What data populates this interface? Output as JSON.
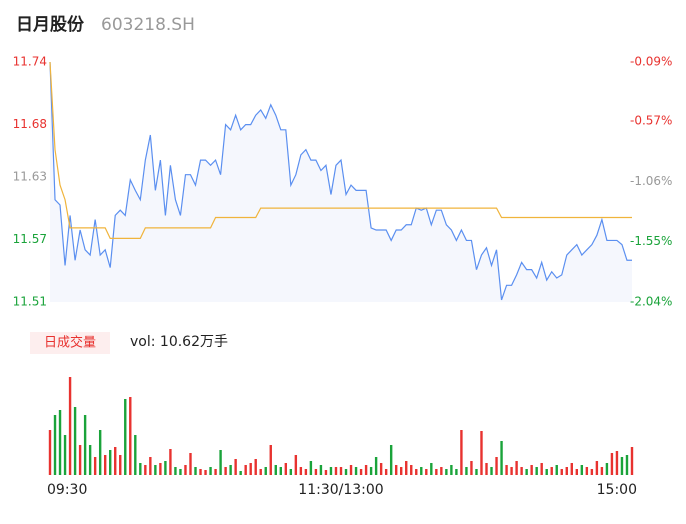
{
  "header": {
    "title": "日月股份",
    "code": "603218.SH"
  },
  "colors": {
    "up": "#e8322f",
    "down": "#1aa33a",
    "flat": "#999999"
  },
  "chart_data": [
    {
      "type": "line",
      "xlim": [
        0,
        116
      ],
      "xticks": [
        {
          "value": 0,
          "label": "09:30"
        },
        {
          "value": 58,
          "label": "11:30/13:00"
        },
        {
          "value": 116,
          "label": "15:00"
        }
      ],
      "ylim": [
        11.51,
        11.74
      ],
      "yticks": [
        11.74,
        11.68,
        11.63,
        11.57,
        11.51
      ],
      "y2lim": [
        -2.04,
        -0.09
      ],
      "y2ticks": [
        {
          "value": -0.09,
          "label": "-0.09%"
        },
        {
          "value": -0.57,
          "label": "-0.57%"
        },
        {
          "value": -1.06,
          "label": "-1.06%"
        },
        {
          "value": -1.55,
          "label": "-1.55%"
        },
        {
          "value": -2.04,
          "label": "-2.04%"
        }
      ],
      "series": [
        {
          "color": "#5b8ff0",
          "fill": "#f5f7fd",
          "values": [
            11.74,
            11.608,
            11.603,
            11.545,
            11.593,
            11.55,
            11.579,
            11.56,
            11.555,
            11.589,
            11.555,
            11.56,
            11.543,
            11.593,
            11.598,
            11.593,
            11.627,
            11.617,
            11.608,
            11.646,
            11.67,
            11.617,
            11.646,
            11.593,
            11.641,
            11.608,
            11.593,
            11.632,
            11.632,
            11.622,
            11.646,
            11.646,
            11.641,
            11.646,
            11.632,
            11.68,
            11.675,
            11.689,
            11.675,
            11.68,
            11.68,
            11.689,
            11.694,
            11.686,
            11.699,
            11.689,
            11.675,
            11.675,
            11.622,
            11.632,
            11.651,
            11.656,
            11.646,
            11.646,
            11.636,
            11.641,
            11.613,
            11.641,
            11.646,
            11.613,
            11.622,
            11.617,
            11.617,
            11.617,
            11.581,
            11.579,
            11.579,
            11.579,
            11.569,
            11.579,
            11.579,
            11.584,
            11.584,
            11.6,
            11.598,
            11.6,
            11.584,
            11.598,
            11.598,
            11.584,
            11.579,
            11.569,
            11.579,
            11.569,
            11.569,
            11.541,
            11.555,
            11.562,
            11.545,
            11.56,
            11.512,
            11.526,
            11.526,
            11.536,
            11.548,
            11.541,
            11.541,
            11.533,
            11.548,
            11.531,
            11.539,
            11.533,
            11.536,
            11.555,
            11.56,
            11.565,
            11.555,
            11.56,
            11.565,
            11.574,
            11.589,
            11.569,
            11.569,
            11.569,
            11.565,
            11.55,
            11.55
          ]
        },
        {
          "color": "#f0b43c",
          "values": [
            11.74,
            11.656,
            11.622,
            11.608,
            11.581,
            11.581,
            11.581,
            11.581,
            11.581,
            11.581,
            11.581,
            11.581,
            11.571,
            11.571,
            11.571,
            11.571,
            11.571,
            11.571,
            11.571,
            11.581,
            11.581,
            11.581,
            11.581,
            11.581,
            11.581,
            11.581,
            11.581,
            11.581,
            11.581,
            11.581,
            11.581,
            11.581,
            11.581,
            11.591,
            11.591,
            11.591,
            11.591,
            11.591,
            11.591,
            11.591,
            11.591,
            11.591,
            11.6,
            11.6,
            11.6,
            11.6,
            11.6,
            11.6,
            11.6,
            11.6,
            11.6,
            11.6,
            11.6,
            11.6,
            11.6,
            11.6,
            11.6,
            11.6,
            11.6,
            11.6,
            11.6,
            11.6,
            11.6,
            11.6,
            11.6,
            11.6,
            11.6,
            11.6,
            11.6,
            11.6,
            11.6,
            11.6,
            11.6,
            11.6,
            11.6,
            11.6,
            11.6,
            11.6,
            11.6,
            11.6,
            11.6,
            11.6,
            11.6,
            11.6,
            11.6,
            11.6,
            11.6,
            11.6,
            11.6,
            11.6,
            11.591,
            11.591,
            11.591,
            11.591,
            11.591,
            11.591,
            11.591,
            11.591,
            11.591,
            11.591,
            11.591,
            11.591,
            11.591,
            11.591,
            11.591,
            11.591,
            11.591,
            11.591,
            11.591,
            11.591,
            11.591,
            11.591,
            11.591,
            11.591,
            11.591,
            11.591,
            11.591
          ]
        }
      ]
    },
    {
      "type": "volume",
      "title": "日成交量",
      "subtitle": "vol: 10.62万手",
      "ylim": [
        0,
        100
      ],
      "values": [
        45,
        60,
        65,
        40,
        98,
        68,
        30,
        60,
        30,
        18,
        45,
        20,
        25,
        28,
        20,
        76,
        78,
        40,
        12,
        10,
        18,
        10,
        12,
        14,
        26,
        8,
        6,
        10,
        22,
        8,
        6,
        5,
        8,
        6,
        25,
        8,
        10,
        16,
        4,
        10,
        12,
        16,
        6,
        8,
        30,
        10,
        8,
        12,
        6,
        20,
        8,
        6,
        14,
        6,
        10,
        5,
        8,
        8,
        8,
        6,
        10,
        8,
        6,
        10,
        8,
        18,
        12,
        6,
        30,
        10,
        8,
        14,
        10,
        6,
        8,
        6,
        12,
        6,
        8,
        6,
        10,
        6,
        45,
        8,
        14,
        6,
        44,
        12,
        8,
        18,
        34,
        10,
        8,
        14,
        8,
        6,
        10,
        8,
        12,
        6,
        8,
        10,
        6,
        8,
        12,
        6,
        10,
        8,
        6,
        14,
        8,
        12,
        22,
        24,
        18,
        20,
        28
      ]
    }
  ]
}
